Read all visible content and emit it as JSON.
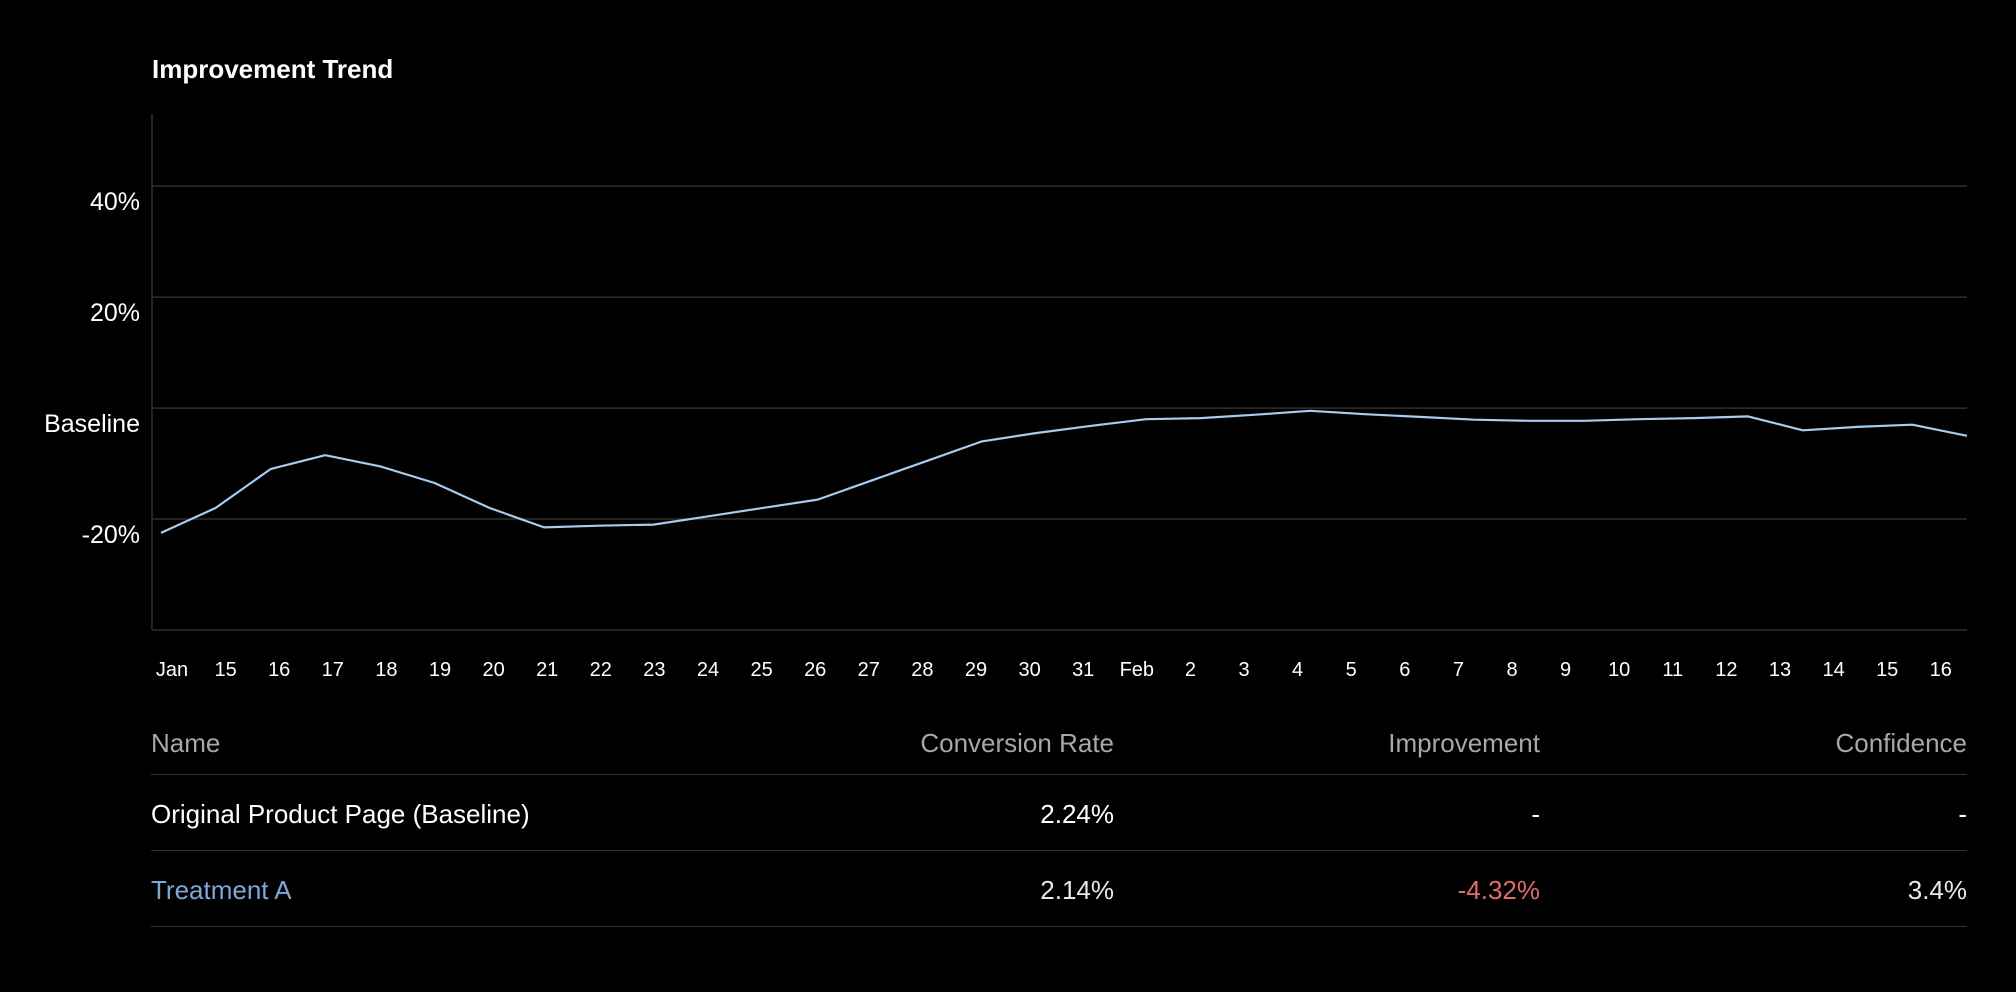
{
  "chart_data": {
    "type": "line",
    "title": "Improvement Trend",
    "y_ticks": [
      {
        "value": 40,
        "label": "40%"
      },
      {
        "value": 20,
        "label": "20%"
      },
      {
        "value": 0,
        "label": "Baseline"
      },
      {
        "value": -20,
        "label": "-20%"
      }
    ],
    "ylim": [
      -40,
      53
    ],
    "x_ticks": [
      "Jan",
      "15",
      "16",
      "17",
      "18",
      "19",
      "20",
      "21",
      "22",
      "23",
      "24",
      "25",
      "26",
      "27",
      "28",
      "29",
      "30",
      "31",
      "Feb",
      "2",
      "3",
      "4",
      "5",
      "6",
      "7",
      "8",
      "9",
      "10",
      "11",
      "12",
      "13",
      "14",
      "15",
      "16"
    ],
    "series": [
      {
        "color": "#a6ccef",
        "x": [
          "Jan 14",
          "Jan 15",
          "Jan 16",
          "Jan 17",
          "Jan 18",
          "Jan 19",
          "Jan 20",
          "Jan 21",
          "Jan 22",
          "Jan 23",
          "Jan 24",
          "Jan 25",
          "Jan 26",
          "Jan 27",
          "Jan 28",
          "Jan 29",
          "Jan 30",
          "Jan 31",
          "Feb 1",
          "Feb 2",
          "Feb 3",
          "Feb 4",
          "Feb 5",
          "Feb 6",
          "Feb 7",
          "Feb 8",
          "Feb 9",
          "Feb 10",
          "Feb 11",
          "Feb 12",
          "Feb 13",
          "Feb 14",
          "Feb 15",
          "Feb 16"
        ],
        "values": [
          -22.5,
          -18,
          -11,
          -8.5,
          -10.5,
          -13.5,
          -18,
          -21.5,
          -21.2,
          -21,
          -19.5,
          -18,
          -16.5,
          -13,
          -9.5,
          -6,
          -4.5,
          -3.2,
          -2,
          -1.8,
          -1.2,
          -0.5,
          -1.1,
          -1.6,
          -2.1,
          -2.3,
          -2.3,
          -2.0,
          -1.8,
          -1.5,
          -4,
          -3.4,
          -3,
          -5
        ]
      }
    ],
    "grid": true
  },
  "table": {
    "headers": {
      "name": "Name",
      "conversion_rate": "Conversion Rate",
      "improvement": "Improvement",
      "confidence": "Confidence"
    },
    "rows": [
      {
        "name": "Original Product Page (Baseline)",
        "conversion_rate": "2.24%",
        "improvement": "-",
        "confidence": "-"
      },
      {
        "name": "Treatment A",
        "conversion_rate": "2.14%",
        "improvement": "-4.32%",
        "confidence": "3.4%"
      }
    ]
  }
}
